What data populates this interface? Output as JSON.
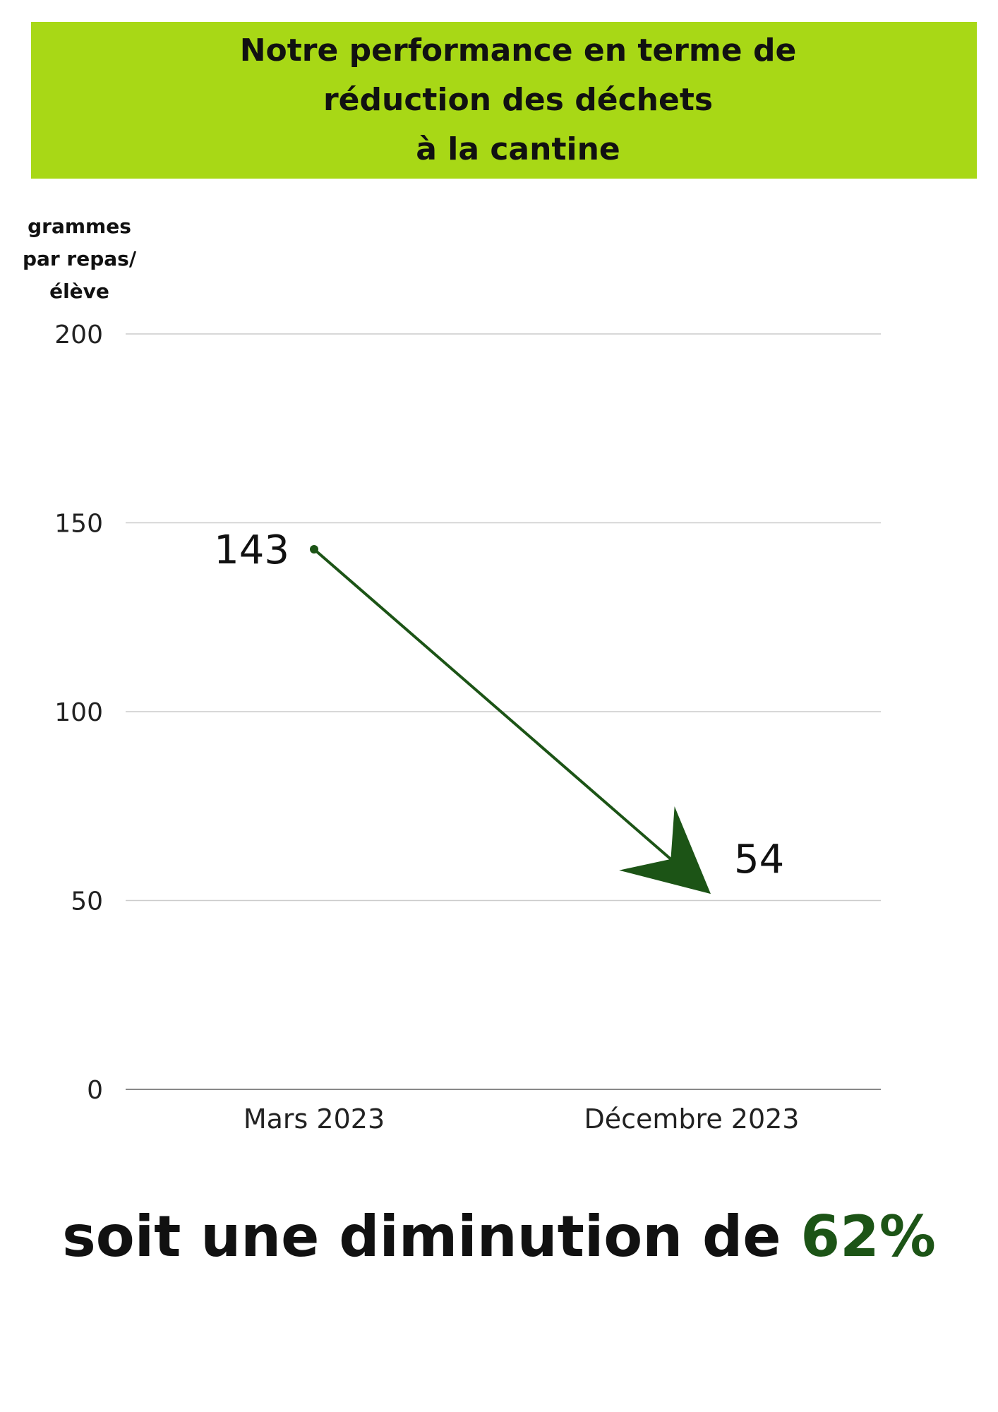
{
  "header": {
    "title": "Notre performance en terme de\nréduction des déchets\nà la cantine"
  },
  "chart_data": {
    "type": "line",
    "categories": [
      "Mars 2023",
      "Décembre 2023"
    ],
    "values": [
      143,
      54
    ],
    "data_labels": [
      "143",
      "54"
    ],
    "ylabel": "grammes\npar repas/\nélève",
    "xlabel": "",
    "ylim": [
      0,
      200
    ],
    "yticks": [
      0,
      50,
      100,
      150,
      200
    ],
    "grid": true,
    "arrow": true
  },
  "summary": {
    "prefix": "soit une diminution de ",
    "percentage": "62%"
  },
  "colors": {
    "banner": "#a8d816",
    "line": "#1c5416",
    "grid": "#cccccc",
    "accent_text": "#1c5416"
  }
}
